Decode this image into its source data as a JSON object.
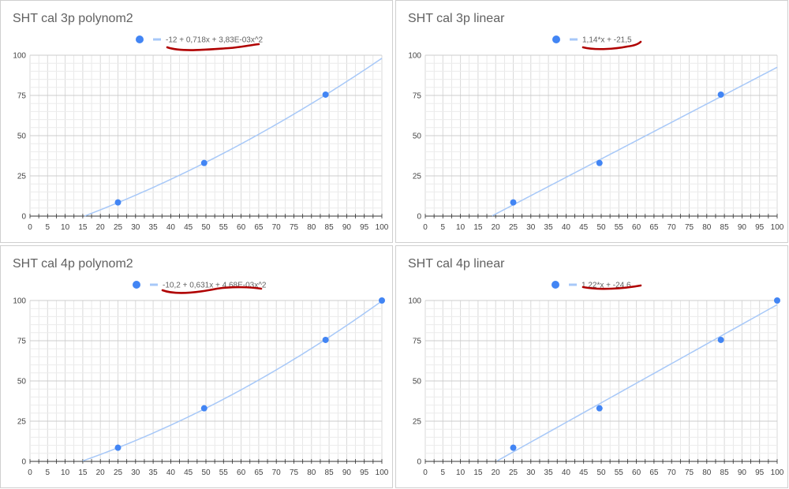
{
  "colors": {
    "point": "#4285f4",
    "trend": "#a7c8f8",
    "grid": "#d9d9d9",
    "axis": "#333333",
    "mark": "#b00000"
  },
  "chart_data": [
    {
      "type": "scatter",
      "title": "SHT cal 3p polynom2",
      "legend": {
        "entry": "-12 + 0,718x + 3,83E-03x^2",
        "position": "top"
      },
      "points": {
        "x": [
          25,
          49.5,
          84
        ],
        "y": [
          8.5,
          33,
          75.5
        ]
      },
      "trendline": {
        "kind": "polynomial",
        "coefficients": [
          -12,
          0.718,
          0.00383
        ]
      },
      "xlim": [
        0,
        100
      ],
      "ylim": [
        0,
        100
      ],
      "xticks": [
        0,
        5,
        10,
        15,
        20,
        25,
        30,
        35,
        40,
        45,
        50,
        55,
        60,
        65,
        70,
        75,
        80,
        85,
        90,
        95,
        100
      ],
      "yticks": [
        0,
        25,
        50,
        75,
        100
      ],
      "grid": true
    },
    {
      "type": "scatter",
      "title": "SHT cal 3p linear",
      "legend": {
        "entry": "1,14*x + -21,5",
        "position": "top"
      },
      "points": {
        "x": [
          25,
          49.5,
          84
        ],
        "y": [
          8.5,
          33,
          75.5
        ]
      },
      "trendline": {
        "kind": "linear",
        "coefficients": [
          -21.5,
          1.14
        ]
      },
      "xlim": [
        0,
        100
      ],
      "ylim": [
        0,
        100
      ],
      "xticks": [
        0,
        5,
        10,
        15,
        20,
        25,
        30,
        35,
        40,
        45,
        50,
        55,
        60,
        65,
        70,
        75,
        80,
        85,
        90,
        95,
        100
      ],
      "yticks": [
        0,
        25,
        50,
        75,
        100
      ],
      "grid": true
    },
    {
      "type": "scatter",
      "title": "SHT cal 4p polynom2",
      "legend": {
        "entry": "-10,2 + 0,631x + 4,68E-03x^2",
        "position": "top"
      },
      "points": {
        "x": [
          25,
          49.5,
          84,
          100
        ],
        "y": [
          8.5,
          33,
          75.5,
          100
        ]
      },
      "trendline": {
        "kind": "polynomial",
        "coefficients": [
          -10.2,
          0.631,
          0.00468
        ]
      },
      "xlim": [
        0,
        100
      ],
      "ylim": [
        0,
        100
      ],
      "xticks": [
        0,
        5,
        10,
        15,
        20,
        25,
        30,
        35,
        40,
        45,
        50,
        55,
        60,
        65,
        70,
        75,
        80,
        85,
        90,
        95,
        100
      ],
      "yticks": [
        0,
        25,
        50,
        75,
        100
      ],
      "grid": true
    },
    {
      "type": "scatter",
      "title": "SHT cal 4p linear",
      "legend": {
        "entry": "1,22*x + -24,6",
        "position": "top"
      },
      "points": {
        "x": [
          25,
          49.5,
          84,
          100
        ],
        "y": [
          8.5,
          33,
          75.5,
          100
        ]
      },
      "trendline": {
        "kind": "linear",
        "coefficients": [
          -24.6,
          1.22
        ]
      },
      "xlim": [
        0,
        100
      ],
      "ylim": [
        0,
        100
      ],
      "xticks": [
        0,
        5,
        10,
        15,
        20,
        25,
        30,
        35,
        40,
        45,
        50,
        55,
        60,
        65,
        70,
        75,
        80,
        85,
        90,
        95,
        100
      ],
      "yticks": [
        0,
        25,
        50,
        75,
        100
      ],
      "grid": true
    }
  ]
}
